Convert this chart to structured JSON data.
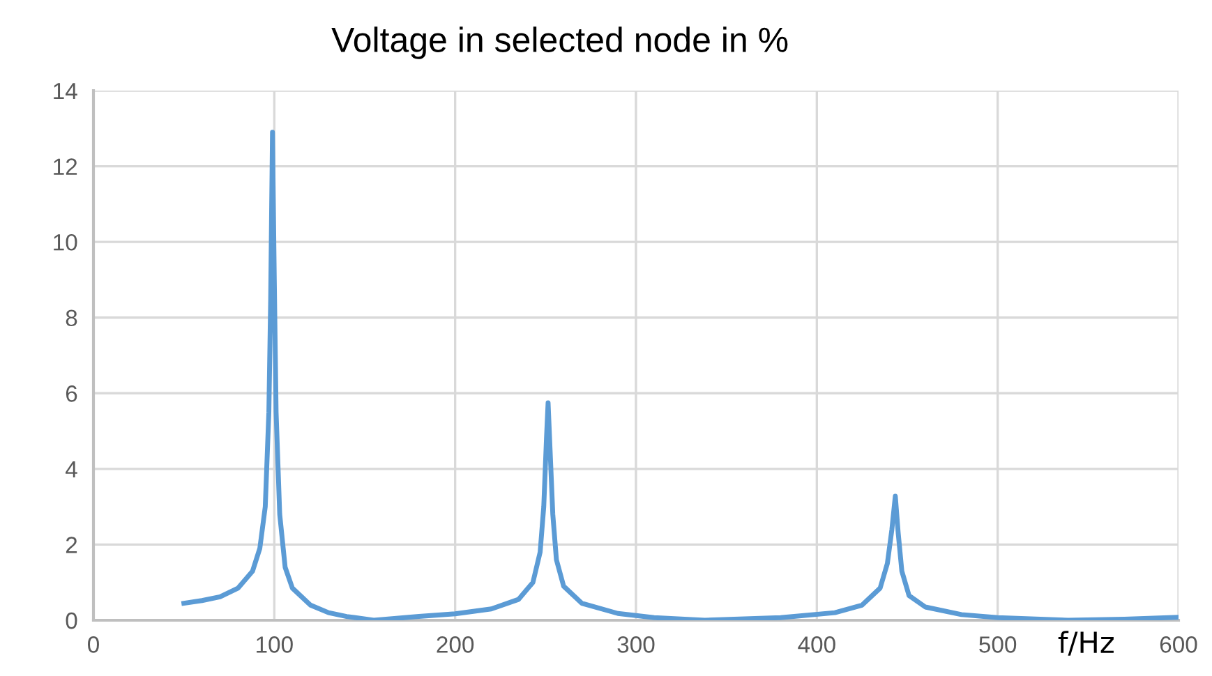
{
  "chart_data": {
    "type": "line",
    "title": "Voltage in selected node in %",
    "xlabel": "f/Hz",
    "xlim": [
      0,
      600
    ],
    "xticks": [
      0,
      100,
      200,
      300,
      400,
      500,
      600
    ],
    "ylim": [
      0,
      14
    ],
    "yticks": [
      0,
      2,
      4,
      6,
      8,
      10,
      12,
      14
    ],
    "grid": true,
    "legend": false,
    "marker": "none",
    "line_style": "solid",
    "series": [
      {
        "color": "#5b9bd5",
        "x": [
          50,
          60,
          70,
          80,
          88,
          92,
          95,
          97,
          98,
          99,
          100,
          101,
          103,
          106,
          110,
          120,
          130,
          140,
          155,
          180,
          200,
          220,
          235,
          243,
          247,
          249,
          250.5,
          251.4,
          252.5,
          254,
          256,
          260,
          270,
          290,
          310,
          338,
          380,
          410,
          425,
          435,
          439,
          441.5,
          443.4,
          445,
          447,
          451,
          460,
          480,
          500,
          539,
          570,
          600
        ],
        "values": [
          0.45,
          0.52,
          0.62,
          0.85,
          1.3,
          1.9,
          3.0,
          5.5,
          8.5,
          12.9,
          9,
          5.5,
          2.8,
          1.4,
          0.85,
          0.4,
          0.2,
          0.1,
          0.0,
          0.1,
          0.17,
          0.3,
          0.55,
          1.0,
          1.8,
          3.0,
          4.8,
          5.75,
          4.5,
          2.8,
          1.6,
          0.9,
          0.45,
          0.18,
          0.07,
          0.0,
          0.07,
          0.2,
          0.4,
          0.85,
          1.5,
          2.4,
          3.28,
          2.3,
          1.3,
          0.65,
          0.35,
          0.15,
          0.07,
          0.0,
          0.03,
          0.08
        ]
      }
    ]
  }
}
